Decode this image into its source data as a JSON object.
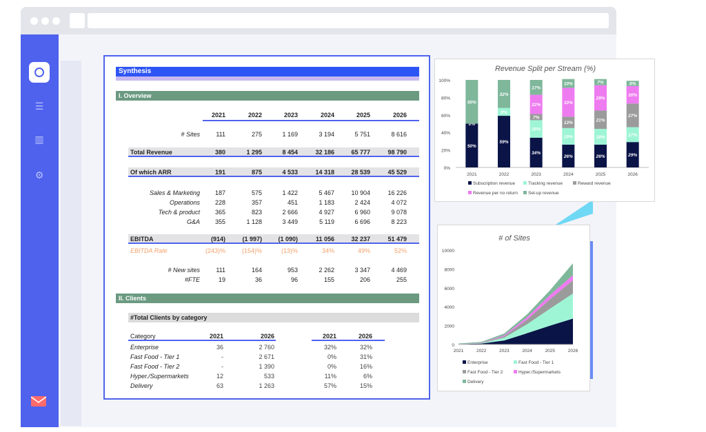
{
  "sheet": {
    "title": "Synthesis",
    "overview": {
      "section_label": "I.   Overview",
      "years": [
        "2021",
        "2022",
        "2023",
        "2024",
        "2025",
        "2026"
      ],
      "rows": [
        {
          "label": "# Sites",
          "values": [
            "111",
            "275",
            "1 169",
            "3 194",
            "5 751",
            "8 616"
          ]
        },
        {
          "label": "Total Revenue",
          "values": [
            "380",
            "1 295",
            "8 454",
            "32 186",
            "65 777",
            "98 790"
          ]
        },
        {
          "label": "Of which ARR",
          "values": [
            "191",
            "875",
            "4 533",
            "14 318",
            "28 539",
            "45 529"
          ]
        },
        {
          "label": "Sales & Marketing",
          "values": [
            "187",
            "575",
            "1 422",
            "5 467",
            "10 904",
            "16 226"
          ]
        },
        {
          "label": "Operations",
          "values": [
            "228",
            "357",
            "451",
            "1 183",
            "2 424",
            "4 072"
          ]
        },
        {
          "label": "Tech & product",
          "values": [
            "365",
            "823",
            "2 666",
            "4 927",
            "6 960",
            "9 078"
          ]
        },
        {
          "label": "G&A",
          "values": [
            "355",
            "1 128",
            "3 449",
            "5 119",
            "6 696",
            "8 223"
          ]
        },
        {
          "label": "EBITDA",
          "values": [
            "(914)",
            "(1 997)",
            "(1 090)",
            "11 056",
            "32 237",
            "51 479"
          ]
        },
        {
          "label": "EBITDA Rate",
          "values": [
            "(243)%",
            "(154)%",
            "(13)%",
            "34%",
            "49%",
            "52%"
          ]
        },
        {
          "label": "# New sites",
          "values": [
            "111",
            "164",
            "953",
            "2 262",
            "3 347",
            "4 469"
          ]
        },
        {
          "label": "#FTE",
          "values": [
            "19",
            "36",
            "96",
            "155",
            "206",
            "255"
          ]
        }
      ]
    },
    "clients": {
      "section_label": "II.   Clients",
      "table_title": "#Total Clients by category",
      "col_category": "Category",
      "cols": [
        "2021",
        "2026",
        "2021",
        "2026"
      ],
      "rows": [
        {
          "label": "Enterprise",
          "values": [
            "36",
            "2 760",
            "32%",
            "32%"
          ]
        },
        {
          "label": "Fast Food - Tier 1",
          "values": [
            "-",
            "2 671",
            "0%",
            "31%"
          ]
        },
        {
          "label": "Fast Food - Tier 2",
          "values": [
            "-",
            "1 390",
            "0%",
            "16%"
          ]
        },
        {
          "label": "Hyper./Supermarkets",
          "values": [
            "12",
            "533",
            "11%",
            "6%"
          ]
        },
        {
          "label": "Delivery",
          "values": [
            "63",
            "1 263",
            "57%",
            "15%"
          ]
        }
      ]
    }
  },
  "chart_data": [
    {
      "type": "bar",
      "stacked": true,
      "percent": true,
      "title": "Revenue Split per Stream (%)",
      "categories": [
        "2021",
        "2022",
        "2023",
        "2024",
        "2025",
        "2026"
      ],
      "ylim": [
        0,
        100
      ],
      "yticks": [
        "0%",
        "20%",
        "40%",
        "60%",
        "80%",
        "100%"
      ],
      "series": [
        {
          "name": "Subscription revenue",
          "color": "#0b1447",
          "values": [
            50,
            59,
            34,
            26,
            26,
            29
          ],
          "labels": [
            "50%",
            "59%",
            "34%",
            "26%",
            "26%",
            "29%"
          ]
        },
        {
          "name": "Tracking revenue",
          "color": "#9ef5d6",
          "values": [
            0,
            9,
            20,
            19,
            18,
            17
          ],
          "labels": [
            "0%",
            "9%",
            "20%",
            "19%",
            "18%",
            "17%"
          ]
        },
        {
          "name": "Reward revenue",
          "color": "#9b9b9b",
          "values": [
            0,
            0,
            7,
            13,
            21,
            27
          ],
          "labels": [
            "",
            "",
            "7%",
            "13%",
            "21%",
            "27%"
          ]
        },
        {
          "name": "Revenue per no return",
          "color": "#ee7bf0",
          "values": [
            0,
            0,
            22,
            33,
            29,
            20
          ],
          "labels": [
            "",
            "",
            "22%",
            "33%",
            "29%",
            "20%"
          ]
        },
        {
          "name": "Set-up revenue",
          "color": "#7fb79b",
          "values": [
            50,
            32,
            17,
            10,
            7,
            6
          ],
          "labels": [
            "50%",
            "32%",
            "17%",
            "10%",
            "7%",
            "6%"
          ]
        }
      ],
      "legend": "bottom",
      "grid": false
    },
    {
      "type": "area",
      "stacked": true,
      "title": "# of Sites",
      "categories": [
        "2021",
        "2022",
        "2023",
        "2024",
        "2025",
        "2026"
      ],
      "ylim": [
        0,
        10000
      ],
      "yticks": [
        "0",
        "2000",
        "4000",
        "6000",
        "8000",
        "10000"
      ],
      "series": [
        {
          "name": "Enterprise",
          "color": "#0b1447",
          "values": [
            40,
            100,
            430,
            1200,
            2000,
            2750
          ]
        },
        {
          "name": "Fast Food - Tier 1",
          "color": "#9ef5d6",
          "values": [
            0,
            40,
            300,
            950,
            1800,
            2650
          ]
        },
        {
          "name": "Fast Food - Tier 2",
          "color": "#9b9b9b",
          "values": [
            0,
            20,
            150,
            500,
            1000,
            1400
          ]
        },
        {
          "name": "Hyper./Supermarkets",
          "color": "#ee7bf0",
          "values": [
            10,
            30,
            100,
            250,
            450,
            550
          ]
        },
        {
          "name": "Delivery",
          "color": "#7fb79b",
          "values": [
            60,
            85,
            190,
            300,
            500,
            1250
          ]
        }
      ],
      "legend": "bottom",
      "grid": false
    }
  ]
}
